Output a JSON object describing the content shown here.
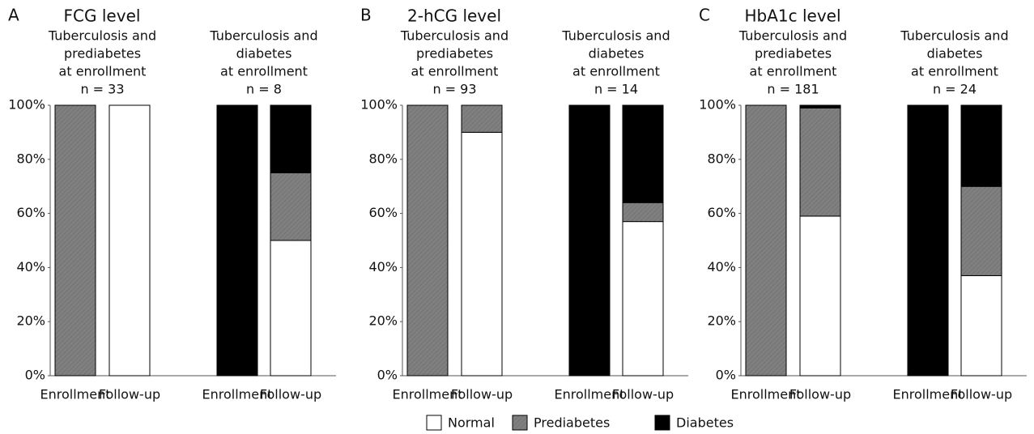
{
  "chart_data": [
    {
      "type": "bar",
      "stacked": true,
      "panel": "A",
      "title": "FCG level",
      "groups": [
        [
          "Tuberculosis and",
          "prediabetes",
          "at enrollment",
          "n = 33"
        ],
        [
          "Tuberculosis and",
          "diabetes",
          "at enrollment",
          "n = 8"
        ]
      ],
      "categories": [
        "Enrollment",
        "Follow-up",
        "Enrollment",
        "Follow-up"
      ],
      "series": [
        {
          "name": "Normal",
          "color": "#ffffff",
          "values": [
            0,
            100,
            0,
            50
          ]
        },
        {
          "name": "Prediabetes",
          "color": "#808080",
          "values": [
            100,
            0,
            0,
            25
          ]
        },
        {
          "name": "Diabetes",
          "color": "#000000",
          "values": [
            0,
            0,
            100,
            25
          ]
        }
      ],
      "ylim": [
        0,
        100
      ],
      "yticks": [
        {
          "value": 0,
          "label": "0%"
        },
        {
          "value": 20,
          "label": "20%"
        },
        {
          "value": 40,
          "label": "40%"
        },
        {
          "value": 60,
          "label": "60%"
        },
        {
          "value": 80,
          "label": "80%"
        },
        {
          "value": 100,
          "label": "100%"
        }
      ]
    },
    {
      "type": "bar",
      "stacked": true,
      "panel": "B",
      "title": "2-hCG level",
      "groups": [
        [
          "Tuberculosis and",
          "prediabetes",
          "at enrollment",
          "n = 93"
        ],
        [
          "Tuberculosis and",
          "diabetes",
          "at enrollment",
          "n = 14"
        ]
      ],
      "categories": [
        "Enrollment",
        "Follow-up",
        "Enrollment",
        "Follow-up"
      ],
      "series": [
        {
          "name": "Normal",
          "color": "#ffffff",
          "values": [
            0,
            90,
            0,
            57
          ]
        },
        {
          "name": "Prediabetes",
          "color": "#808080",
          "values": [
            100,
            10,
            0,
            7
          ]
        },
        {
          "name": "Diabetes",
          "color": "#000000",
          "values": [
            0,
            0,
            100,
            36
          ]
        }
      ],
      "ylim": [
        0,
        100
      ],
      "yticks": [
        {
          "value": 0,
          "label": "0%"
        },
        {
          "value": 20,
          "label": "20%"
        },
        {
          "value": 40,
          "label": "40%"
        },
        {
          "value": 60,
          "label": "60%"
        },
        {
          "value": 80,
          "label": "80%"
        },
        {
          "value": 100,
          "label": "100%"
        }
      ]
    },
    {
      "type": "bar",
      "stacked": true,
      "panel": "C",
      "title": "HbA1c level",
      "groups": [
        [
          "Tuberculosis and",
          "prediabetes",
          "at enrollment",
          "n = 181"
        ],
        [
          "Tuberculosis and",
          "diabetes",
          "at enrollment",
          "n = 24"
        ]
      ],
      "categories": [
        "Enrollment",
        "Follow-up",
        "Enrollment",
        "Follow-up"
      ],
      "series": [
        {
          "name": "Normal",
          "color": "#ffffff",
          "values": [
            0,
            59,
            0,
            37
          ]
        },
        {
          "name": "Prediabetes",
          "color": "#808080",
          "values": [
            100,
            40,
            0,
            33
          ]
        },
        {
          "name": "Diabetes",
          "color": "#000000",
          "values": [
            0,
            1,
            100,
            30
          ]
        }
      ],
      "ylim": [
        0,
        100
      ],
      "yticks": [
        {
          "value": 0,
          "label": "0%"
        },
        {
          "value": 20,
          "label": "20%"
        },
        {
          "value": 40,
          "label": "40%"
        },
        {
          "value": 60,
          "label": "60%"
        },
        {
          "value": 80,
          "label": "80%"
        },
        {
          "value": 100,
          "label": "100%"
        }
      ]
    }
  ]
}
